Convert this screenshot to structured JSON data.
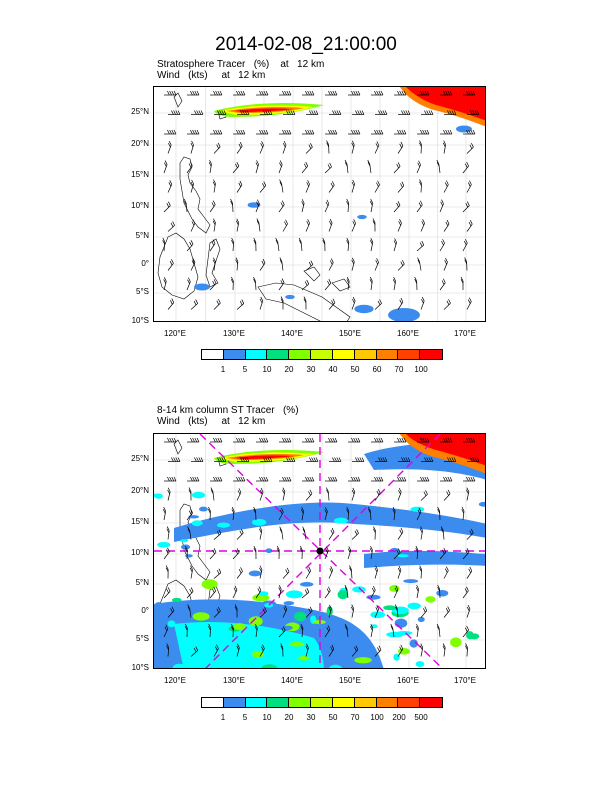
{
  "title": "2014-02-08_21:00:00",
  "panel1": {
    "title_line1": "Stratosphere Tracer   (%)    at   12 km",
    "title_line2": "Wind   (kts)     at   12 km",
    "colorbar": {
      "labels": [
        "1",
        "5",
        "10",
        "20",
        "30",
        "40",
        "50",
        "60",
        "70",
        "100"
      ],
      "colors": [
        "#ffffff",
        "#3c8cf0",
        "#00ffff",
        "#00e080",
        "#80ff00",
        "#c8ff00",
        "#ffff00",
        "#ffc800",
        "#ff8000",
        "#ff4000",
        "#ff0000"
      ]
    }
  },
  "panel2": {
    "title_line1": "8-14 km column ST Tracer   (%)",
    "title_line2": "Wind   (kts)     at   12 km",
    "colorbar": {
      "labels": [
        "1",
        "5",
        "10",
        "20",
        "30",
        "50",
        "70",
        "100",
        "200",
        "500"
      ],
      "colors": [
        "#ffffff",
        "#3c8cf0",
        "#00ffff",
        "#00e080",
        "#80ff00",
        "#c8ff00",
        "#ffff00",
        "#ffc800",
        "#ff8000",
        "#ff4000",
        "#ff0000"
      ]
    }
  },
  "map_axes": {
    "lat_labels": [
      "25°N",
      "20°N",
      "15°N",
      "10°N",
      "5°N",
      "0°",
      "5°S",
      "10°S"
    ],
    "lon_labels": [
      "120°E",
      "130°E",
      "140°E",
      "150°E",
      "160°E",
      "170°E"
    ]
  }
}
